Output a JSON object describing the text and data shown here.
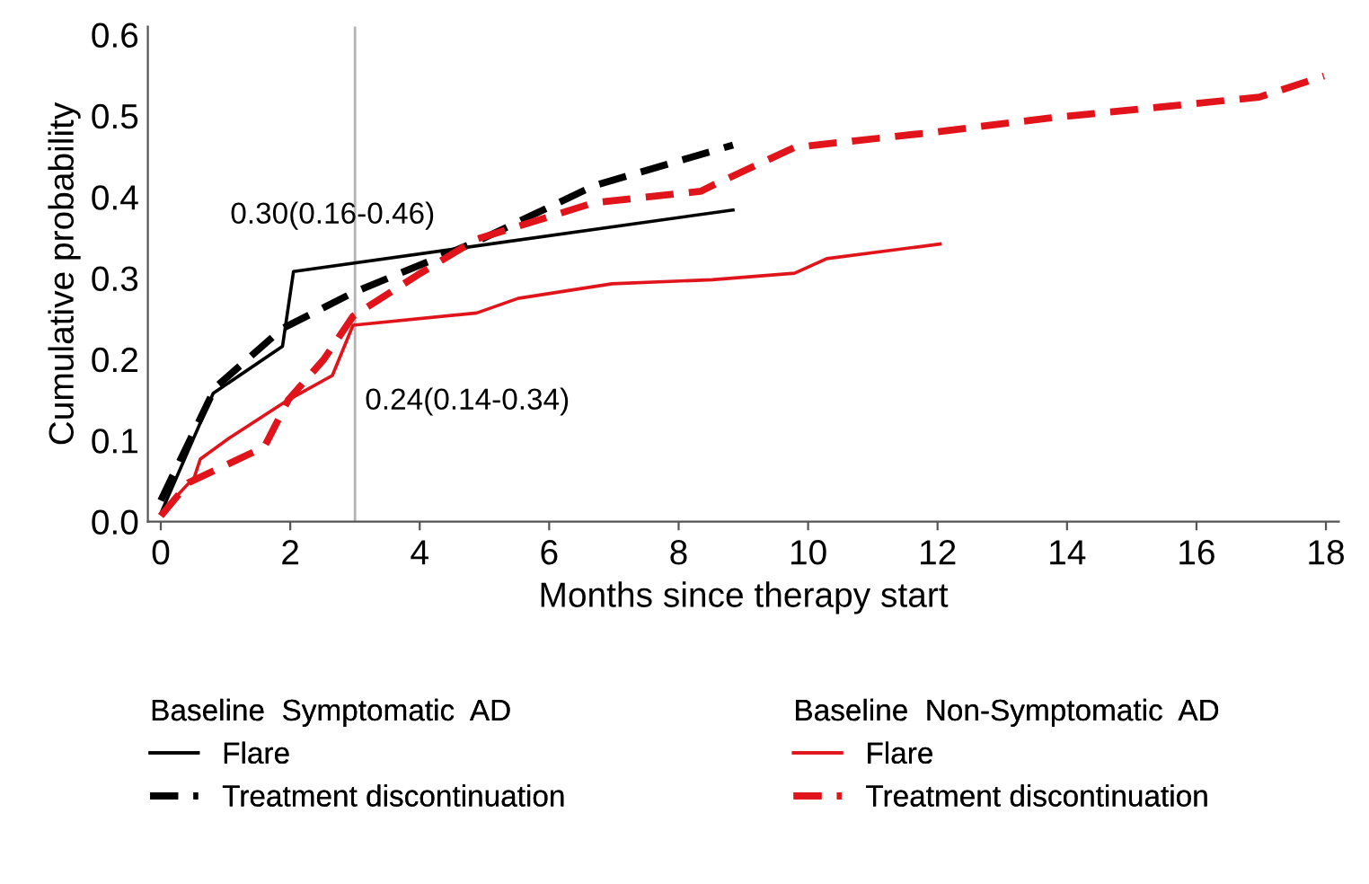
{
  "chart_data": {
    "type": "line",
    "xlabel": "Months since therapy start",
    "ylabel": "Cumulative probability",
    "xlim": [
      -0.2,
      18.2
    ],
    "xticks": [
      0,
      2,
      4,
      6,
      8,
      10,
      12,
      14,
      16,
      18
    ],
    "ylim": [
      0,
      0.61
    ],
    "yticks": [
      {
        "value": 0,
        "label": "0.0"
      },
      0.1,
      0.2,
      0.3,
      0.4,
      0.5,
      0.6
    ],
    "grid": false,
    "legend": "bottom",
    "legend_title": [
      "Baseline  Symptomatic  AD",
      "Baseline  Non-Symptomatic  AD"
    ],
    "series": [
      {
        "name": "Flare",
        "color": "#000000",
        "line_style": "solid",
        "x": [
          0,
          0.81,
          1.88,
          2.05,
          8.84
        ],
        "values": [
          0.01,
          0.158,
          0.216,
          0.308,
          0.384
        ]
      },
      {
        "name": "Treatment discontinuation",
        "color": "#000000",
        "line_style": "dashed",
        "x": [
          0,
          0.84,
          1.88,
          2.97,
          4.88,
          6.7,
          8.84
        ],
        "values": [
          0.026,
          0.165,
          0.238,
          0.282,
          0.345,
          0.414,
          0.464
        ]
      },
      {
        "name": "Flare",
        "color": "#e0141a",
        "line_style": "solid",
        "x": [
          0,
          0.52,
          0.61,
          1.06,
          1.97,
          2.65,
          2.97,
          4.88,
          5.52,
          6.97,
          8.52,
          9.79,
          10.29,
          12.04
        ],
        "values": [
          0.01,
          0.055,
          0.077,
          0.103,
          0.15,
          0.18,
          0.242,
          0.257,
          0.275,
          0.293,
          0.298,
          0.306,
          0.324,
          0.342
        ]
      },
      {
        "name": "Treatment discontinuation",
        "color": "#e0141a",
        "line_style": "dashed",
        "x": [
          0,
          0.43,
          1.6,
          1.97,
          2.52,
          2.97,
          3.97,
          4.88,
          6.7,
          8.34,
          8.52,
          9.79,
          11.97,
          13.7,
          16.97,
          17.97
        ],
        "values": [
          0.007,
          0.048,
          0.092,
          0.15,
          0.2,
          0.253,
          0.304,
          0.348,
          0.393,
          0.407,
          0.414,
          0.461,
          0.48,
          0.497,
          0.523,
          0.549
        ]
      }
    ],
    "ref_lines": [
      {
        "axis": "x",
        "value": 3,
        "color": "#b4b4b4"
      }
    ],
    "annotations": [
      {
        "text": "0.30(0.16-0.46)",
        "x": 3,
        "y": 0.3
      },
      {
        "text": "0.24(0.14-0.34)",
        "x": 3,
        "y": 0.24
      }
    ]
  }
}
